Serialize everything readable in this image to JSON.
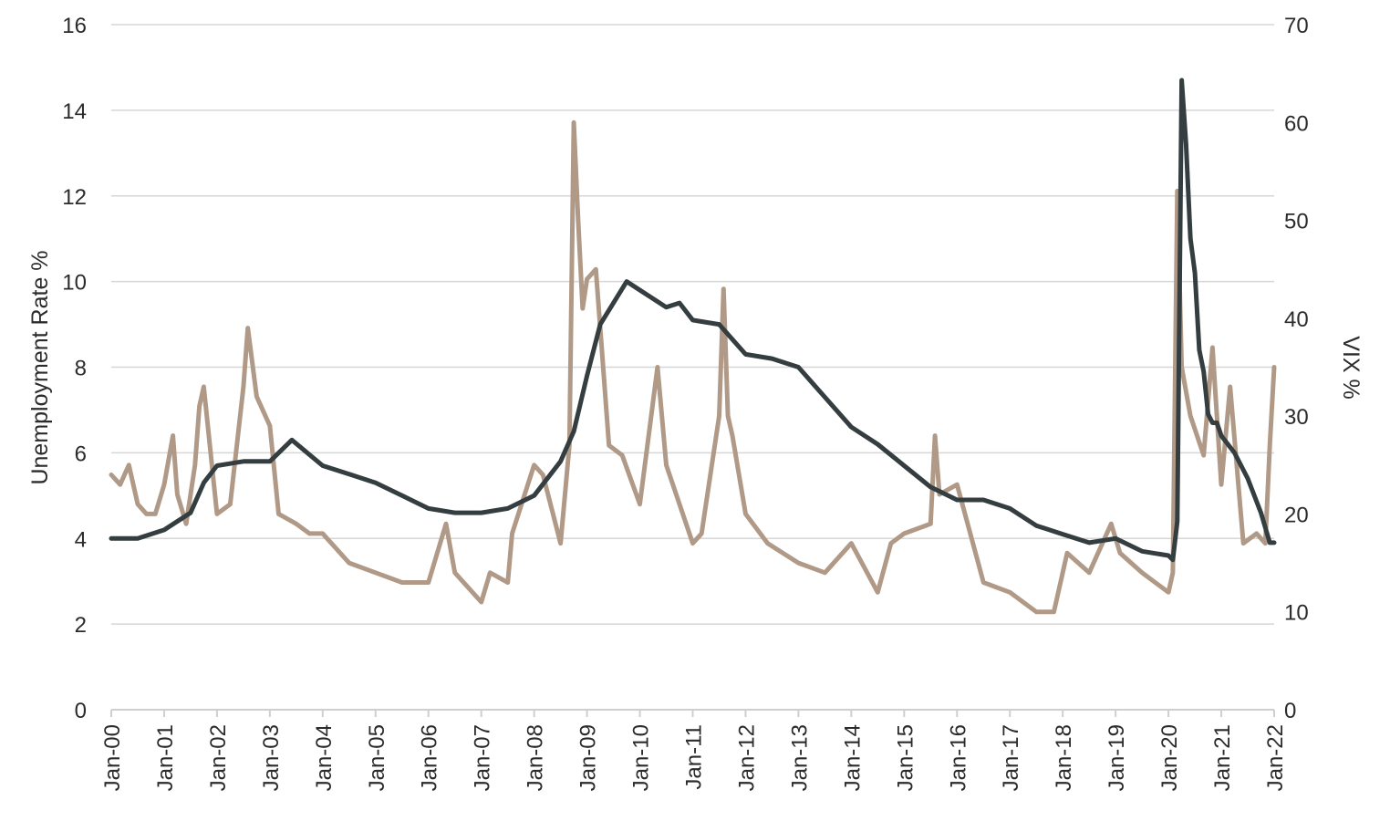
{
  "chart_data": {
    "type": "line",
    "y_left_label": "Unemployment Rate %",
    "y_right_label": "VIX %",
    "y_left_lim": [
      0,
      16
    ],
    "y_right_lim": [
      0,
      70
    ],
    "y_left_ticks": [
      0,
      2,
      4,
      6,
      8,
      10,
      12,
      14,
      16
    ],
    "y_right_ticks": [
      0,
      10,
      20,
      30,
      40,
      50,
      60,
      70
    ],
    "x_tick_labels": [
      "Jan-00",
      "Jan-01",
      "Jan-02",
      "Jan-03",
      "Jan-04",
      "Jan-05",
      "Jan-06",
      "Jan-07",
      "Jan-08",
      "Jan-09",
      "Jan-10",
      "Jan-11",
      "Jan-12",
      "Jan-13",
      "Jan-14",
      "Jan-15",
      "Jan-16",
      "Jan-17",
      "Jan-18",
      "Jan-19",
      "Jan-20",
      "Jan-21",
      "Jan-22"
    ],
    "grid": true,
    "colors": {
      "unemployment": "#343d3f",
      "vix": "#b09a87",
      "grid": "#d6d6d6",
      "axis": "#cfcfcf"
    },
    "series": [
      {
        "key": "unemployment",
        "axis": "left",
        "x": [
          "Jan-00",
          "Jul-00",
          "Jan-01",
          "Jul-01",
          "Oct-01",
          "Jan-02",
          "Jul-02",
          "Jan-03",
          "Jun-03",
          "Jan-04",
          "Jul-04",
          "Jan-05",
          "Jul-05",
          "Jan-06",
          "Jul-06",
          "Jan-07",
          "Jul-07",
          "Jan-08",
          "Jul-08",
          "Oct-08",
          "Jan-09",
          "Apr-09",
          "Jul-09",
          "Oct-09",
          "Jan-10",
          "Jul-10",
          "Oct-10",
          "Jan-11",
          "Jul-11",
          "Jan-12",
          "Jul-12",
          "Jan-13",
          "Jul-13",
          "Jan-14",
          "Jul-14",
          "Jan-15",
          "Jul-15",
          "Jan-16",
          "Jul-16",
          "Jan-17",
          "Jul-17",
          "Jan-18",
          "Jul-18",
          "Jan-19",
          "Jul-19",
          "Jan-20",
          "Feb-20",
          "Mar-20",
          "Apr-20",
          "May-20",
          "Jun-20",
          "Jul-20",
          "Aug-20",
          "Sep-20",
          "Oct-20",
          "Nov-20",
          "Dec-20",
          "Jan-21",
          "Apr-21",
          "Jul-21",
          "Oct-21",
          "Dec-21",
          "Jan-22"
        ],
        "values": [
          4.0,
          4.0,
          4.2,
          4.6,
          5.3,
          5.7,
          5.8,
          5.8,
          6.3,
          5.7,
          5.5,
          5.3,
          5.0,
          4.7,
          4.6,
          4.6,
          4.7,
          5.0,
          5.8,
          6.5,
          7.8,
          9.0,
          9.5,
          10.0,
          9.8,
          9.4,
          9.5,
          9.1,
          9.0,
          8.3,
          8.2,
          8.0,
          7.3,
          6.6,
          6.2,
          5.7,
          5.2,
          4.9,
          4.9,
          4.7,
          4.3,
          4.1,
          3.9,
          4.0,
          3.7,
          3.6,
          3.5,
          4.4,
          14.7,
          13.2,
          11.0,
          10.2,
          8.4,
          7.9,
          6.9,
          6.7,
          6.7,
          6.4,
          6.0,
          5.4,
          4.6,
          3.9,
          3.9
        ]
      },
      {
        "key": "vix",
        "axis": "right",
        "x": [
          "Jan-00",
          "Mar-00",
          "May-00",
          "Jul-00",
          "Sep-00",
          "Nov-00",
          "Jan-01",
          "Mar-01",
          "Apr-01",
          "Jun-01",
          "Aug-01",
          "Sep-01",
          "Oct-01",
          "Jan-02",
          "Apr-02",
          "Jul-02",
          "Aug-02",
          "Oct-02",
          "Jan-03",
          "Mar-03",
          "Jul-03",
          "Oct-03",
          "Jan-04",
          "Jul-04",
          "Jan-05",
          "Jul-05",
          "Jan-06",
          "May-06",
          "Jul-06",
          "Jan-07",
          "Mar-07",
          "Jul-07",
          "Aug-07",
          "Jan-08",
          "Mar-08",
          "Jul-08",
          "Sep-08",
          "Oct-08",
          "Nov-08",
          "Dec-08",
          "Jan-09",
          "Mar-09",
          "Jun-09",
          "Sep-09",
          "Jan-10",
          "May-10",
          "Jul-10",
          "Jan-11",
          "Mar-11",
          "Jul-11",
          "Aug-11",
          "Sep-11",
          "Oct-11",
          "Jan-12",
          "Jun-12",
          "Jan-13",
          "Jul-13",
          "Jan-14",
          "Jul-14",
          "Oct-14",
          "Jan-15",
          "Jul-15",
          "Aug-15",
          "Sep-15",
          "Jan-16",
          "Jul-16",
          "Jan-17",
          "Jul-17",
          "Nov-17",
          "Feb-18",
          "Jul-18",
          "Dec-18",
          "Feb-19",
          "Jul-19",
          "Jan-20",
          "Feb-20",
          "Mar-20",
          "Apr-20",
          "Jun-20",
          "Sep-20",
          "Nov-20",
          "Jan-21",
          "Mar-21",
          "Jun-21",
          "Sep-21",
          "Nov-21",
          "Dec-21",
          "Jan-22"
        ],
        "values": [
          24,
          23,
          25,
          21,
          20,
          20,
          23,
          28,
          22,
          19,
          25,
          31,
          33,
          20,
          21,
          33,
          39,
          32,
          29,
          20,
          19,
          18,
          18,
          15,
          14,
          13,
          13,
          19,
          14,
          11,
          14,
          13,
          18,
          25,
          24,
          17,
          27,
          60,
          50,
          41,
          44,
          45,
          27,
          26,
          21,
          35,
          25,
          17,
          18,
          30,
          43,
          30,
          28,
          20,
          17,
          15,
          14,
          17,
          12,
          17,
          18,
          19,
          28,
          22,
          23,
          13,
          12,
          10,
          10,
          16,
          14,
          19,
          16,
          14,
          12,
          14,
          53,
          35,
          30,
          26,
          37,
          23,
          33,
          17,
          18,
          17,
          27,
          35
        ]
      }
    ]
  }
}
